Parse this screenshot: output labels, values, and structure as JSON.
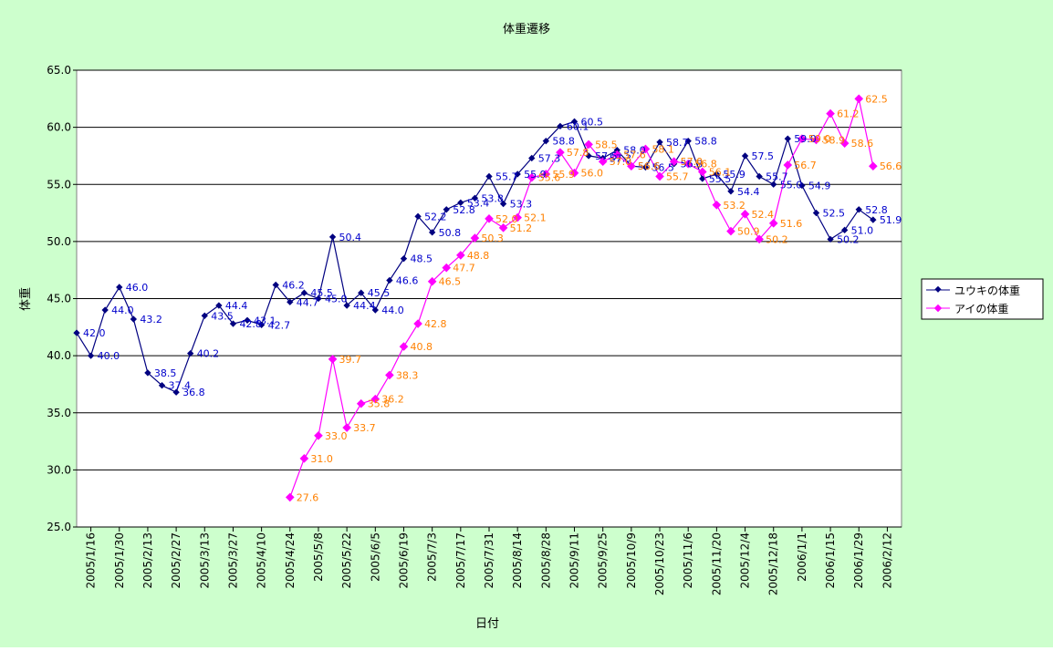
{
  "colors": {
    "background": "#cdffcd",
    "plot_background": "#ffffff",
    "series_yuuki": "#000080",
    "series_ai": "#ff00ff",
    "label_yuuki": "#0000cc",
    "label_ai": "#ff8000"
  },
  "chart_data": {
    "type": "line",
    "title": "体重遷移",
    "xlabel": "日付",
    "ylabel": "体重",
    "ylim": [
      25,
      65
    ],
    "yticks": [
      "25.0",
      "30.0",
      "35.0",
      "40.0",
      "45.0",
      "50.0",
      "55.0",
      "60.0",
      "65.0"
    ],
    "xlim": [
      "2005-01-09",
      "2006-02-19"
    ],
    "xticks": [
      {
        "date": "2005-01-16",
        "label": "2005/1/16"
      },
      {
        "date": "2005-01-30",
        "label": "2005/1/30"
      },
      {
        "date": "2005-02-13",
        "label": "2005/2/13"
      },
      {
        "date": "2005-02-27",
        "label": "2005/2/27"
      },
      {
        "date": "2005-03-13",
        "label": "2005/3/13"
      },
      {
        "date": "2005-03-27",
        "label": "2005/3/27"
      },
      {
        "date": "2005-04-10",
        "label": "2005/4/10"
      },
      {
        "date": "2005-04-24",
        "label": "2005/4/24"
      },
      {
        "date": "2005-05-08",
        "label": "2005/5/8"
      },
      {
        "date": "2005-05-22",
        "label": "2005/5/22"
      },
      {
        "date": "2005-06-05",
        "label": "2005/6/5"
      },
      {
        "date": "2005-06-19",
        "label": "2005/6/19"
      },
      {
        "date": "2005-07-03",
        "label": "2005/7/3"
      },
      {
        "date": "2005-07-17",
        "label": "2005/7/17"
      },
      {
        "date": "2005-07-31",
        "label": "2005/7/31"
      },
      {
        "date": "2005-08-14",
        "label": "2005/8/14"
      },
      {
        "date": "2005-08-28",
        "label": "2005/8/28"
      },
      {
        "date": "2005-09-11",
        "label": "2005/9/11"
      },
      {
        "date": "2005-09-25",
        "label": "2005/9/25"
      },
      {
        "date": "2005-10-09",
        "label": "2005/10/9"
      },
      {
        "date": "2005-10-23",
        "label": "2005/10/23"
      },
      {
        "date": "2005-11-06",
        "label": "2005/11/6"
      },
      {
        "date": "2005-11-20",
        "label": "2005/11/20"
      },
      {
        "date": "2005-12-04",
        "label": "2005/12/4"
      },
      {
        "date": "2005-12-18",
        "label": "2005/12/18"
      },
      {
        "date": "2006-01-01",
        "label": "2006/1/1"
      },
      {
        "date": "2006-01-15",
        "label": "2006/1/15"
      },
      {
        "date": "2006-01-29",
        "label": "2006/1/29"
      },
      {
        "date": "2006-02-12",
        "label": "2006/2/12"
      }
    ],
    "grid": true,
    "legend_position": "right",
    "series": [
      {
        "name": "ユウキの体重",
        "color": "#000080",
        "marker": "diamond",
        "points": [
          {
            "x": "2005-01-09",
            "y": 42.0
          },
          {
            "x": "2005-01-16",
            "y": 40.0
          },
          {
            "x": "2005-01-23",
            "y": 44.0
          },
          {
            "x": "2005-01-30",
            "y": 46.0
          },
          {
            "x": "2005-02-06",
            "y": 43.2
          },
          {
            "x": "2005-02-13",
            "y": 38.5
          },
          {
            "x": "2005-02-20",
            "y": 37.4
          },
          {
            "x": "2005-02-27",
            "y": 36.8
          },
          {
            "x": "2005-03-06",
            "y": 40.2
          },
          {
            "x": "2005-03-13",
            "y": 43.5
          },
          {
            "x": "2005-03-20",
            "y": 44.4
          },
          {
            "x": "2005-03-27",
            "y": 42.8
          },
          {
            "x": "2005-04-03",
            "y": 43.1
          },
          {
            "x": "2005-04-10",
            "y": 42.7
          },
          {
            "x": "2005-04-17",
            "y": 46.2
          },
          {
            "x": "2005-04-24",
            "y": 44.7
          },
          {
            "x": "2005-05-01",
            "y": 45.5
          },
          {
            "x": "2005-05-08",
            "y": 45.0
          },
          {
            "x": "2005-05-15",
            "y": 50.4
          },
          {
            "x": "2005-05-22",
            "y": 44.4
          },
          {
            "x": "2005-05-29",
            "y": 45.5
          },
          {
            "x": "2005-06-05",
            "y": 44.0
          },
          {
            "x": "2005-06-12",
            "y": 46.6
          },
          {
            "x": "2005-06-19",
            "y": 48.5
          },
          {
            "x": "2005-06-26",
            "y": 52.2
          },
          {
            "x": "2005-07-03",
            "y": 50.8
          },
          {
            "x": "2005-07-10",
            "y": 52.8
          },
          {
            "x": "2005-07-17",
            "y": 53.4
          },
          {
            "x": "2005-07-24",
            "y": 53.8
          },
          {
            "x": "2005-07-31",
            "y": 55.7
          },
          {
            "x": "2005-08-07",
            "y": 53.3
          },
          {
            "x": "2005-08-14",
            "y": 55.9
          },
          {
            "x": "2005-08-21",
            "y": 57.3
          },
          {
            "x": "2005-08-28",
            "y": 58.8
          },
          {
            "x": "2005-09-04",
            "y": 60.1
          },
          {
            "x": "2005-09-11",
            "y": 60.5
          },
          {
            "x": "2005-09-18",
            "y": 57.5
          },
          {
            "x": "2005-09-25",
            "y": 57.3
          },
          {
            "x": "2005-10-02",
            "y": 58.0
          },
          {
            "x": "2005-10-09",
            "y": 56.6
          },
          {
            "x": "2005-10-16",
            "y": 56.5
          },
          {
            "x": "2005-10-23",
            "y": 58.7
          },
          {
            "x": "2005-10-30",
            "y": 56.8
          },
          {
            "x": "2005-11-06",
            "y": 58.8
          },
          {
            "x": "2005-11-13",
            "y": 55.5
          },
          {
            "x": "2005-11-20",
            "y": 55.9
          },
          {
            "x": "2005-11-27",
            "y": 54.4
          },
          {
            "x": "2005-12-04",
            "y": 57.5
          },
          {
            "x": "2005-12-11",
            "y": 55.7
          },
          {
            "x": "2005-12-18",
            "y": 55.0
          },
          {
            "x": "2005-12-25",
            "y": 59.0
          },
          {
            "x": "2006-01-01",
            "y": 54.9
          },
          {
            "x": "2006-01-08",
            "y": 52.5
          },
          {
            "x": "2006-01-15",
            "y": 50.2
          },
          {
            "x": "2006-01-22",
            "y": 51.0
          },
          {
            "x": "2006-01-29",
            "y": 52.8
          },
          {
            "x": "2006-02-05",
            "y": 51.9
          }
        ]
      },
      {
        "name": "アイの体重",
        "color": "#ff00ff",
        "marker": "diamond",
        "points": [
          {
            "x": "2005-04-24",
            "y": 27.6
          },
          {
            "x": "2005-05-01",
            "y": 31.0
          },
          {
            "x": "2005-05-08",
            "y": 33.0
          },
          {
            "x": "2005-05-15",
            "y": 39.7
          },
          {
            "x": "2005-05-22",
            "y": 33.7
          },
          {
            "x": "2005-05-29",
            "y": 35.8
          },
          {
            "x": "2005-06-05",
            "y": 36.2
          },
          {
            "x": "2005-06-12",
            "y": 38.3
          },
          {
            "x": "2005-06-19",
            "y": 40.8
          },
          {
            "x": "2005-06-26",
            "y": 42.8
          },
          {
            "x": "2005-07-03",
            "y": 46.5
          },
          {
            "x": "2005-07-10",
            "y": 47.7
          },
          {
            "x": "2005-07-17",
            "y": 48.8
          },
          {
            "x": "2005-07-24",
            "y": 50.3
          },
          {
            "x": "2005-07-31",
            "y": 52.0
          },
          {
            "x": "2005-08-07",
            "y": 51.2
          },
          {
            "x": "2005-08-14",
            "y": 52.1
          },
          {
            "x": "2005-08-21",
            "y": 55.6
          },
          {
            "x": "2005-08-28",
            "y": 55.9
          },
          {
            "x": "2005-09-04",
            "y": 57.8
          },
          {
            "x": "2005-09-11",
            "y": 56.0
          },
          {
            "x": "2005-09-18",
            "y": 58.5
          },
          {
            "x": "2005-09-25",
            "y": 57.0
          },
          {
            "x": "2005-10-02",
            "y": 57.6
          },
          {
            "x": "2005-10-09",
            "y": 56.6
          },
          {
            "x": "2005-10-16",
            "y": 58.1
          },
          {
            "x": "2005-10-23",
            "y": 55.7
          },
          {
            "x": "2005-10-30",
            "y": 57.0
          },
          {
            "x": "2005-11-06",
            "y": 56.8
          },
          {
            "x": "2005-11-13",
            "y": 56.1
          },
          {
            "x": "2005-11-20",
            "y": 53.2
          },
          {
            "x": "2005-11-27",
            "y": 50.9
          },
          {
            "x": "2005-12-04",
            "y": 52.4
          },
          {
            "x": "2005-12-11",
            "y": 50.2
          },
          {
            "x": "2005-12-18",
            "y": 51.6
          },
          {
            "x": "2005-12-25",
            "y": 56.7
          },
          {
            "x": "2006-01-01",
            "y": 59.0
          },
          {
            "x": "2006-01-08",
            "y": 58.9
          },
          {
            "x": "2006-01-15",
            "y": 61.2
          },
          {
            "x": "2006-01-22",
            "y": 58.6
          },
          {
            "x": "2006-01-29",
            "y": 62.5
          },
          {
            "x": "2006-02-05",
            "y": 56.6
          }
        ]
      }
    ]
  }
}
